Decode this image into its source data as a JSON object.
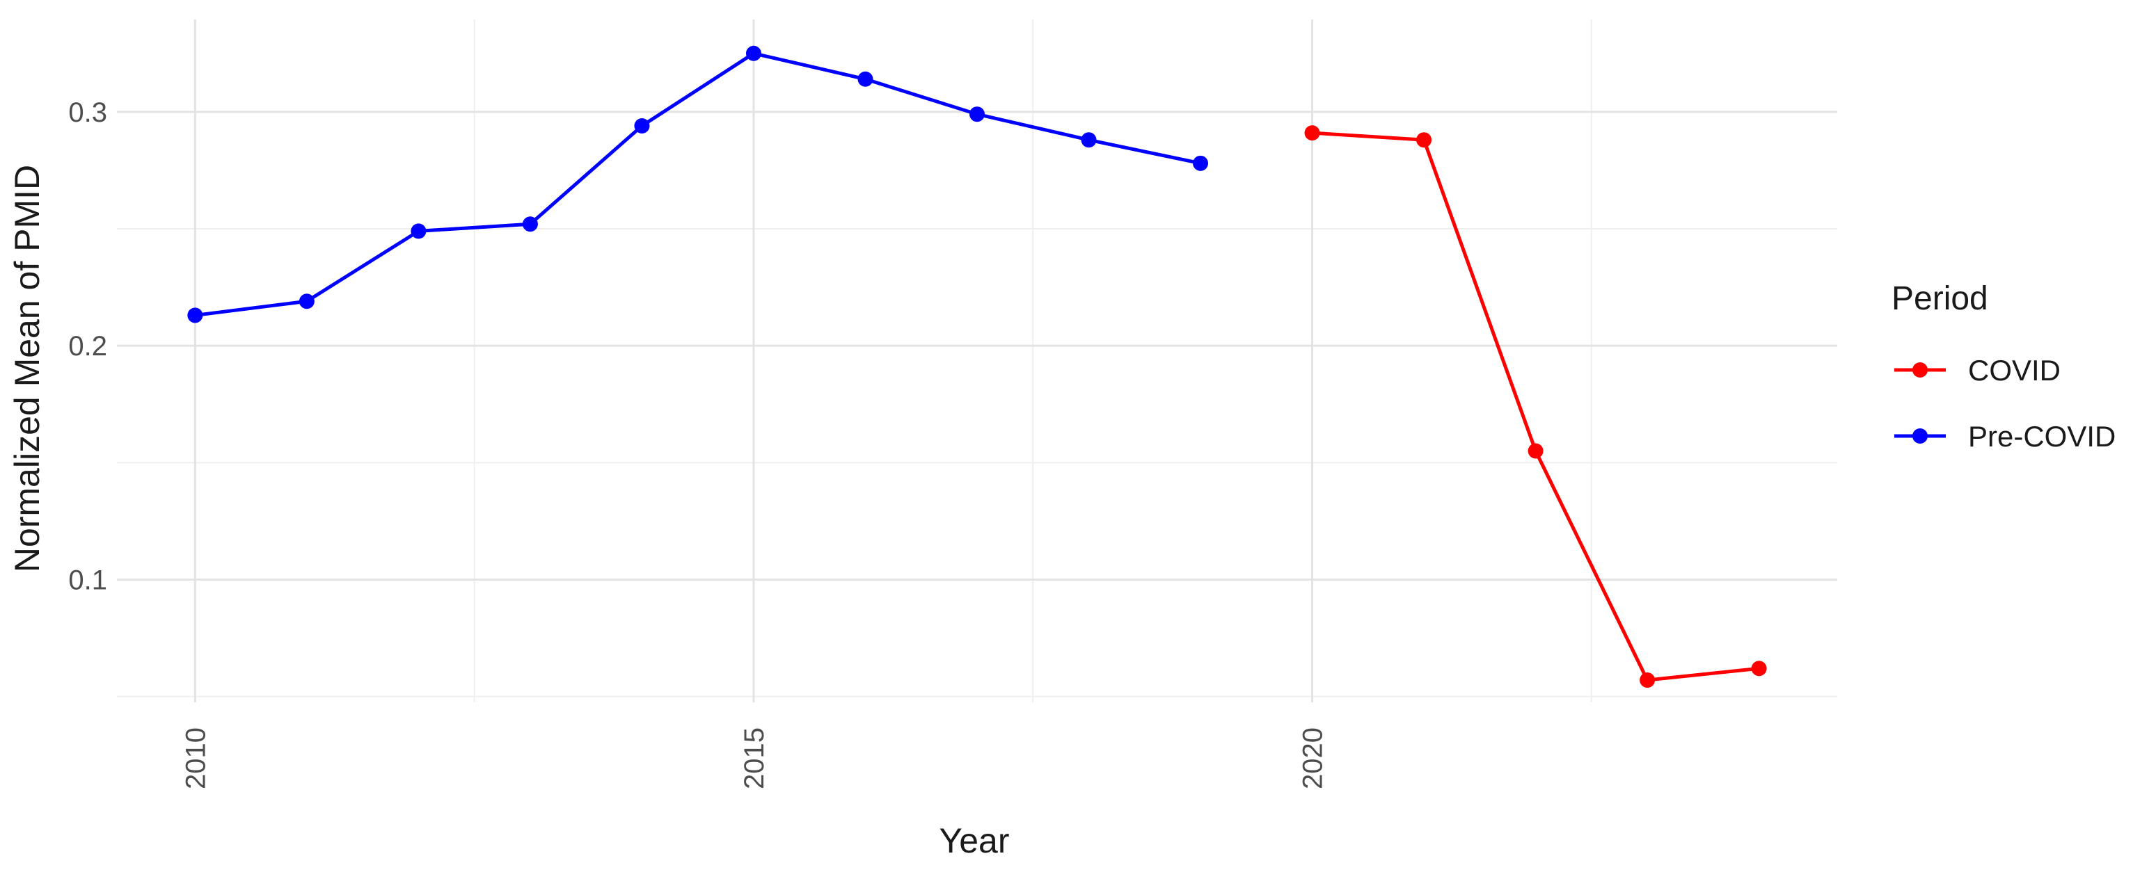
{
  "chart_data": {
    "type": "line",
    "title": "",
    "xlabel": "Year",
    "ylabel": "Normalized Mean of PMID",
    "xlim": [
      2009.3,
      2024.7
    ],
    "ylim": [
      0.0475,
      0.3395
    ],
    "x_ticks": [
      2010,
      2015,
      2020
    ],
    "x_minor_ticks": [
      2012.5,
      2017.5,
      2022.5
    ],
    "y_ticks": [
      0.1,
      0.2,
      0.3
    ],
    "y_minor_ticks": [
      0.05,
      0.15,
      0.25
    ],
    "grid": true,
    "legend": {
      "title": "Period",
      "position": "right",
      "entries": [
        {
          "name": "COVID",
          "color": "#ff0000"
        },
        {
          "name": "Pre-COVID",
          "color": "#0000ff"
        }
      ]
    },
    "series": [
      {
        "name": "Pre-COVID",
        "color": "#0000ff",
        "x": [
          2010,
          2011,
          2012,
          2013,
          2014,
          2015,
          2016,
          2017,
          2018,
          2019
        ],
        "values": [
          0.213,
          0.219,
          0.249,
          0.252,
          0.294,
          0.325,
          0.314,
          0.299,
          0.288,
          0.278
        ]
      },
      {
        "name": "COVID",
        "color": "#ff0000",
        "x": [
          2020,
          2021,
          2022,
          2023,
          2024
        ],
        "values": [
          0.291,
          0.288,
          0.155,
          0.057,
          0.062
        ]
      }
    ]
  }
}
